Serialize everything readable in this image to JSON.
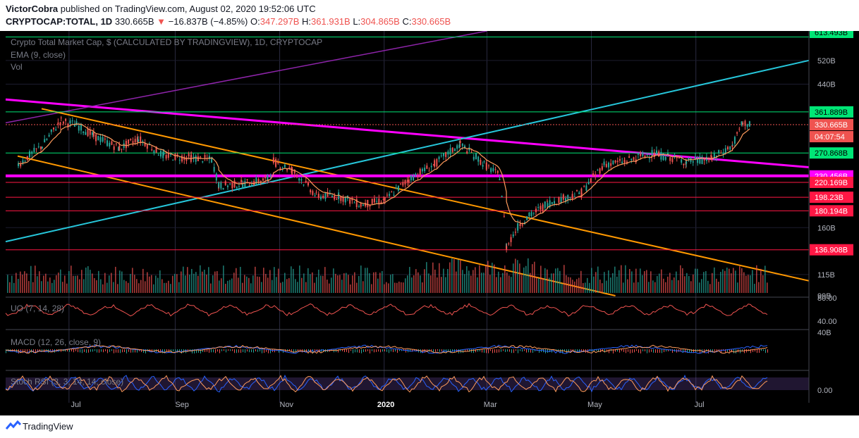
{
  "header": {
    "publisher": "VictorCobra",
    "published_text": "published on TradingView.com, August 02, 2020 19:52:06 UTC",
    "symbol": "CRYPTOCAP:TOTAL, 1D",
    "last": "330.665B",
    "change_arrow": "▼",
    "change": "−16.837B (−4.85%)",
    "o_label": "O:",
    "o_val": "347.297B",
    "h_label": "H:",
    "h_val": "361.931B",
    "l_label": "L:",
    "l_val": "304.865B",
    "c_label": "C:",
    "c_val": "330.665B"
  },
  "legend": {
    "title": "Crypto Total Market Cap, $ (CALCULATED BY TRADINGVIEW), 1D, CRYPTOCAP",
    "ema": "EMA (9, close)",
    "vol": "Vol",
    "uo": "UO (7, 14, 28)",
    "macd": "MACD (12, 26, close, 9)",
    "stoch": "Stoch RSI (3, 3, 14, 14, close)"
  },
  "footer": {
    "brand": "TradingView"
  },
  "colors": {
    "up": "#26a69a",
    "down": "#ef5350",
    "ema": "#ff9b5c",
    "magenta": "#ff00ff",
    "cyan": "#26c6da",
    "orange": "#ff9800",
    "purple": "#8e24aa",
    "green_level": "#00e676",
    "red_level": "#ff1744"
  },
  "chart_data": {
    "type": "line",
    "title": "Crypto Total Market Cap, $ (CALCULATED BY TRADINGVIEW), 1D, CRYPTOCAP",
    "xlabel": "",
    "ylabel": "",
    "x_ticks": [
      "Jul",
      "Sep",
      "Nov",
      "2020",
      "Mar",
      "May",
      "Jul"
    ],
    "y_ticks": [
      "99B",
      "115B",
      "160B",
      "440B",
      "520B"
    ],
    "y_scale": "log",
    "ylim": [
      99,
      640
    ],
    "series": [
      {
        "values": [
          [
            "2019-06-01",
            250
          ],
          [
            "2019-06-15",
            285
          ],
          [
            "2019-06-26",
            340
          ],
          [
            "2019-07-05",
            330
          ],
          [
            "2019-07-15",
            305
          ],
          [
            "2019-07-30",
            280
          ],
          [
            "2019-08-10",
            300
          ],
          [
            "2019-08-25",
            265
          ],
          [
            "2019-09-10",
            262
          ],
          [
            "2019-09-22",
            258
          ],
          [
            "2019-09-26",
            215
          ],
          [
            "2019-10-10",
            218
          ],
          [
            "2019-10-25",
            225
          ],
          [
            "2019-10-28",
            255
          ],
          [
            "2019-11-08",
            240
          ],
          [
            "2019-11-22",
            200
          ],
          [
            "2019-12-05",
            200
          ],
          [
            "2019-12-18",
            188
          ],
          [
            "2020-01-01",
            194
          ],
          [
            "2020-01-15",
            225
          ],
          [
            "2020-01-30",
            250
          ],
          [
            "2020-02-14",
            288
          ],
          [
            "2020-02-28",
            250
          ],
          [
            "2020-03-08",
            230
          ],
          [
            "2020-03-12",
            140
          ],
          [
            "2020-03-20",
            165
          ],
          [
            "2020-04-05",
            190
          ],
          [
            "2020-04-25",
            205
          ],
          [
            "2020-05-08",
            250
          ],
          [
            "2020-05-20",
            255
          ],
          [
            "2020-06-05",
            270
          ],
          [
            "2020-06-25",
            255
          ],
          [
            "2020-07-10",
            260
          ],
          [
            "2020-07-22",
            285
          ],
          [
            "2020-07-28",
            335
          ],
          [
            "2020-08-02",
            330.665
          ]
        ]
      }
    ],
    "price_levels": [
      {
        "label": "361.889B",
        "value": 361.889,
        "color": "#00e676"
      },
      {
        "label": "330.665B",
        "value": 330.665,
        "color": "#ef5350"
      },
      {
        "label": "04:07:54",
        "color": "#ef5350"
      },
      {
        "label": "270.868B",
        "value": 270.868,
        "color": "#00e676"
      },
      {
        "label": "230.456B",
        "value": 230.456,
        "color": "#ff00ff"
      },
      {
        "label": "220.169B",
        "value": 220.169,
        "color": "#ff1744"
      },
      {
        "label": "198.23B",
        "value": 198.23,
        "color": "#ff1744"
      },
      {
        "label": "180.194B",
        "value": 180.194,
        "color": "#ff1744"
      },
      {
        "label": "136.908B",
        "value": 136.908,
        "color": "#ff1744"
      },
      {
        "label": "613.493B",
        "value": 613.493,
        "color": "#00e676"
      }
    ],
    "sub_panels": [
      {
        "name": "UO (7, 14, 28)",
        "ticks": [
          "80.00",
          "40.00"
        ]
      },
      {
        "name": "MACD (12, 26, close, 9)",
        "ticks": [
          "40B"
        ]
      },
      {
        "name": "Stoch RSI (3, 3, 14, 14, close)",
        "ticks": [
          "0.00"
        ]
      }
    ],
    "grid": true
  }
}
